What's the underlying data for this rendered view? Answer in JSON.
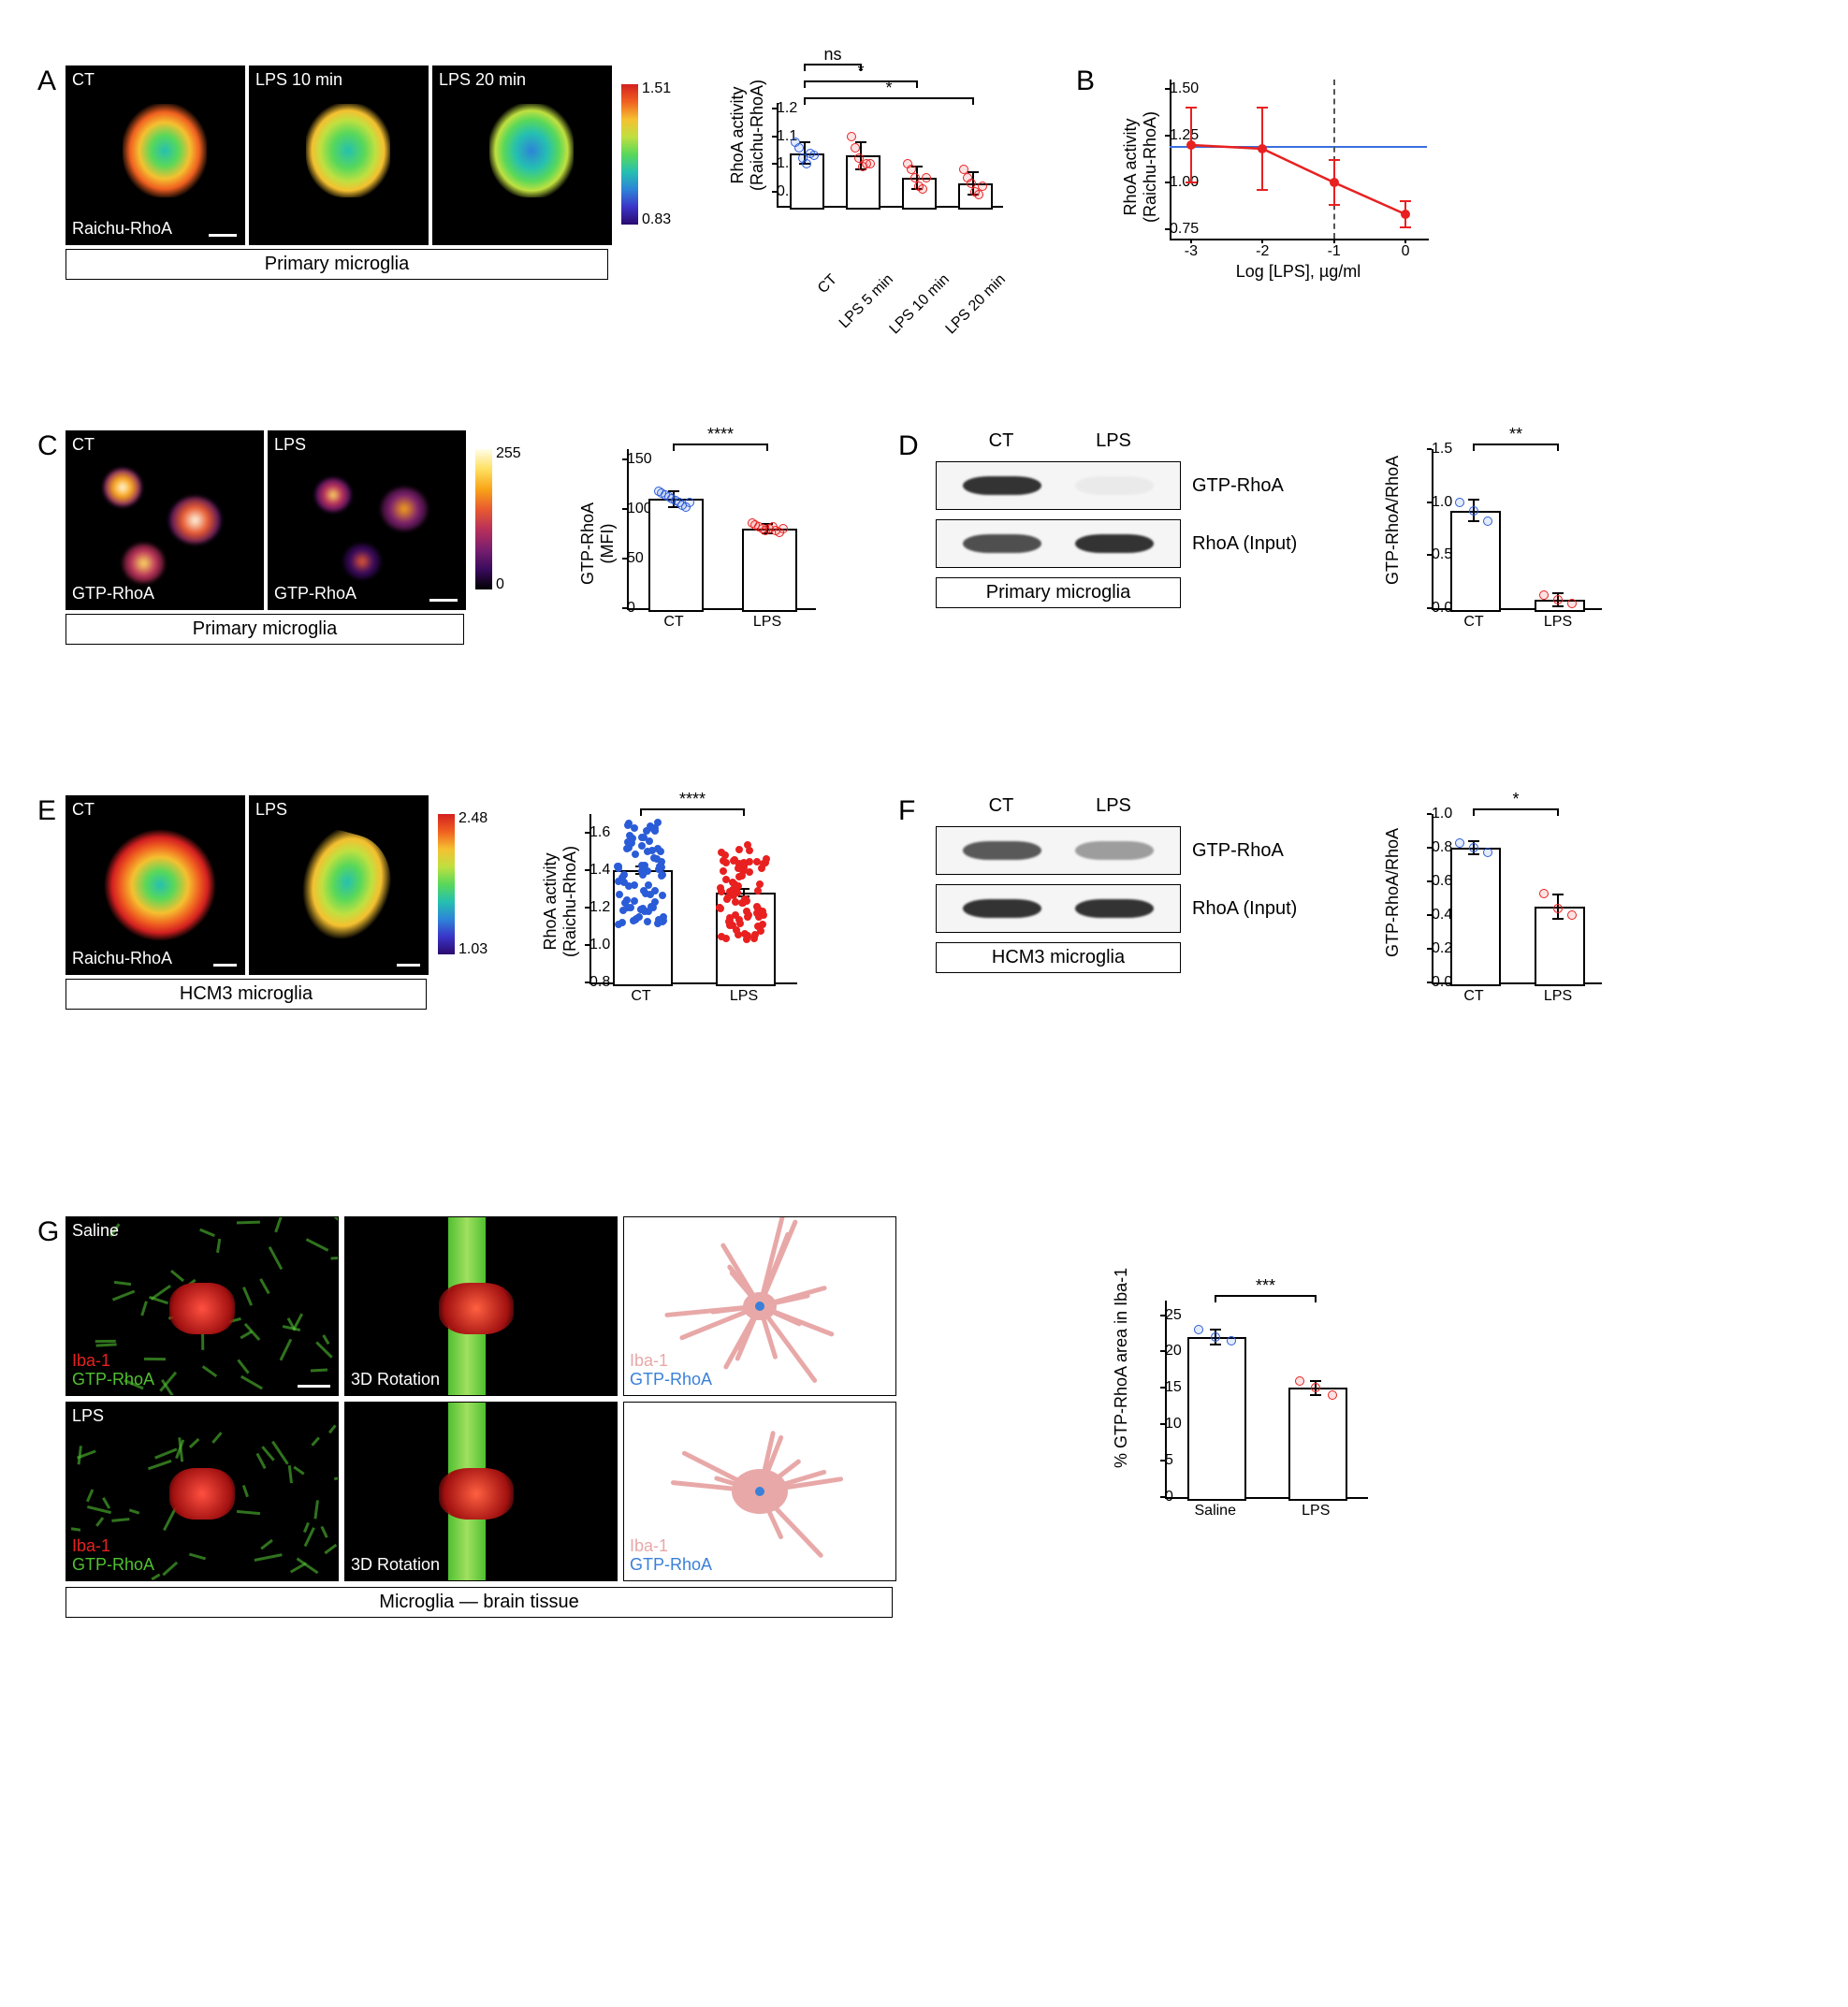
{
  "panelA": {
    "label": "A",
    "images": [
      {
        "title": "CT",
        "overlay": "Raichu-RhoA"
      },
      {
        "title": "LPS 10 min",
        "overlay": ""
      },
      {
        "title": "LPS 20 min",
        "overlay": ""
      }
    ],
    "caption": "Primary microglia",
    "colorbar": {
      "max": "1.51",
      "min": "0.83"
    },
    "chart": {
      "ytitle": "RhoA activity\n(Raichu-RhoA)",
      "yticks": [
        "0.9",
        "1.0",
        "1.1",
        "1.2"
      ],
      "ylim": [
        0.85,
        1.22
      ],
      "categories": [
        "CT",
        "LPS 5 min",
        "LPS 10 min",
        "LPS 20 min"
      ],
      "bars": [
        1.04,
        1.03,
        0.95,
        0.93
      ],
      "err": [
        0.04,
        0.05,
        0.04,
        0.04
      ],
      "points": [
        [
          1.08,
          1.06,
          1.02,
          1.0,
          1.04,
          1.03
        ],
        [
          1.1,
          1.06,
          1.02,
          0.99,
          1.0,
          1.0
        ],
        [
          1.0,
          0.98,
          0.95,
          0.92,
          0.91,
          0.95
        ],
        [
          0.98,
          0.95,
          0.93,
          0.9,
          0.89,
          0.92
        ]
      ],
      "colors": {
        "ct": "#2b5cd8",
        "lps": "#e82020"
      },
      "sig": [
        {
          "from": 0,
          "to": 1,
          "label": "ns"
        },
        {
          "from": 0,
          "to": 2,
          "label": "*"
        },
        {
          "from": 0,
          "to": 3,
          "label": "*"
        }
      ]
    }
  },
  "panelB": {
    "label": "B",
    "ytitle": "RhoA activity\n(Raichu-RhoA)",
    "xtitle": "Log [LPS], µg/ml",
    "yticks": [
      "0.75",
      "1.00",
      "1.25",
      "1.50"
    ],
    "ylim": [
      0.7,
      1.55
    ],
    "xticks": [
      "-3",
      "-2",
      "-1",
      "0"
    ],
    "xlim": [
      -3.3,
      0.3
    ],
    "baseline_y": 1.19,
    "baseline_color": "#3a6fe0",
    "vline_x": -1,
    "series_color": "#e82020",
    "points": [
      {
        "x": -3,
        "y": 1.2,
        "err": 0.2
      },
      {
        "x": -2,
        "y": 1.18,
        "err": 0.22
      },
      {
        "x": -1,
        "y": 1.0,
        "err": 0.12
      },
      {
        "x": 0,
        "y": 0.83,
        "err": 0.07
      }
    ]
  },
  "panelC": {
    "label": "C",
    "images": [
      {
        "title": "CT",
        "overlay": "GTP-RhoA"
      },
      {
        "title": "LPS",
        "overlay": "GTP-RhoA"
      }
    ],
    "caption": "Primary microglia",
    "colorbar": {
      "max": "255",
      "min": "0"
    },
    "chart": {
      "ytitle": "GTP-RhoA\n(MFI)",
      "yticks": [
        "0",
        "50",
        "100",
        "150"
      ],
      "ylim": [
        0,
        160
      ],
      "categories": [
        "CT",
        "LPS"
      ],
      "bars": [
        110,
        80
      ],
      "err": [
        8,
        5
      ],
      "points": [
        [
          118,
          116,
          114,
          112,
          110,
          108,
          106,
          104,
          102,
          106
        ],
        [
          86,
          84,
          82,
          80,
          78,
          80,
          82,
          78,
          76,
          80
        ]
      ],
      "colors": {
        "ct": "#2b5cd8",
        "lps": "#e82020"
      },
      "sig": [
        {
          "from": 0,
          "to": 1,
          "label": "****"
        }
      ]
    }
  },
  "panelD": {
    "label": "D",
    "lanes": [
      "CT",
      "LPS"
    ],
    "rows": [
      {
        "label": "GTP-RhoA",
        "intensity": [
          1.0,
          0.05
        ]
      },
      {
        "label": "RhoA (Input)",
        "intensity": [
          0.85,
          1.0
        ]
      }
    ],
    "caption": "Primary microglia",
    "chart": {
      "ytitle": "GTP-RhoA/RhoA",
      "yticks": [
        "0.0",
        "0.5",
        "1.0",
        "1.5"
      ],
      "ylim": [
        0,
        1.5
      ],
      "categories": [
        "CT",
        "LPS"
      ],
      "bars": [
        0.92,
        0.08
      ],
      "err": [
        0.1,
        0.06
      ],
      "points": [
        [
          1.0,
          0.92,
          0.82
        ],
        [
          0.12,
          0.08,
          0.04
        ]
      ],
      "colors": {
        "ct": "#2b5cd8",
        "lps": "#e82020"
      },
      "sig": [
        {
          "from": 0,
          "to": 1,
          "label": "**"
        }
      ]
    }
  },
  "panelE": {
    "label": "E",
    "images": [
      {
        "title": "CT",
        "overlay": "Raichu-RhoA"
      },
      {
        "title": "LPS",
        "overlay": ""
      }
    ],
    "caption": "HCM3 microglia",
    "colorbar": {
      "max": "2.48",
      "min": "1.03"
    },
    "chart": {
      "ytitle": "RhoA activity\n(Raichu-RhoA)",
      "yticks": [
        "0.8",
        "1.0",
        "1.2",
        "1.4",
        "1.6"
      ],
      "ylim": [
        0.8,
        1.7
      ],
      "categories": [
        "CT",
        "LPS"
      ],
      "bars": [
        1.4,
        1.28
      ],
      "err": [
        0.02,
        0.02
      ],
      "points_dense": {
        "ct_n": 80,
        "lps_n": 80,
        "ct_range": [
          1.1,
          1.65
        ],
        "lps_range": [
          1.02,
          1.55
        ]
      },
      "colors": {
        "ct": "#2b5cd8",
        "lps": "#e82020"
      },
      "sig": [
        {
          "from": 0,
          "to": 1,
          "label": "****"
        }
      ]
    }
  },
  "panelF": {
    "label": "F",
    "lanes": [
      "CT",
      "LPS"
    ],
    "rows": [
      {
        "label": "GTP-RhoA",
        "intensity": [
          0.8,
          0.45
        ]
      },
      {
        "label": "RhoA (Input)",
        "intensity": [
          1.0,
          1.0
        ]
      }
    ],
    "caption": "HCM3 microglia",
    "chart": {
      "ytitle": "GTP-RhoA/RhoA",
      "yticks": [
        "0.0",
        "0.2",
        "0.4",
        "0.6",
        "0.8",
        "1.0"
      ],
      "ylim": [
        0,
        1.0
      ],
      "categories": [
        "CT",
        "LPS"
      ],
      "bars": [
        0.8,
        0.45
      ],
      "err": [
        0.04,
        0.07
      ],
      "points": [
        [
          0.83,
          0.8,
          0.77
        ],
        [
          0.53,
          0.44,
          0.4
        ]
      ],
      "colors": {
        "ct": "#2b5cd8",
        "lps": "#e82020"
      },
      "sig": [
        {
          "from": 0,
          "to": 1,
          "label": "*"
        }
      ]
    }
  },
  "panelG": {
    "label": "G",
    "rows": [
      {
        "cond": "Saline",
        "overlays": [
          [
            "Iba-1",
            "GTP-RhoA"
          ],
          [
            "3D Rotation"
          ],
          [
            "Iba-1",
            "GTP-RhoA"
          ]
        ],
        "overlay_colors": [
          [
            "#e82020",
            "#50c030"
          ],
          [
            "#ffffff"
          ],
          [
            "#e8a8a8",
            "#3a80d8"
          ]
        ]
      },
      {
        "cond": "LPS",
        "overlays": [
          [
            "Iba-1",
            "GTP-RhoA"
          ],
          [
            "3D Rotation"
          ],
          [
            "Iba-1",
            "GTP-RhoA"
          ]
        ],
        "overlay_colors": [
          [
            "#e82020",
            "#50c030"
          ],
          [
            "#ffffff"
          ],
          [
            "#e8a8a8",
            "#3a80d8"
          ]
        ]
      }
    ],
    "caption": "Microglia — brain tissue",
    "chart": {
      "ytitle": "% GTP-RhoA area in Iba-1",
      "yticks": [
        "0",
        "5",
        "10",
        "15",
        "20",
        "25"
      ],
      "ylim": [
        0,
        27
      ],
      "categories": [
        "Saline",
        "LPS"
      ],
      "bars": [
        22,
        15
      ],
      "err": [
        1.0,
        1.0
      ],
      "points": [
        [
          23,
          22,
          21.5
        ],
        [
          16,
          15,
          14
        ]
      ],
      "colors": {
        "ct": "#2b5cd8",
        "lps": "#e82020"
      },
      "sig": [
        {
          "from": 0,
          "to": 1,
          "label": "***"
        }
      ]
    }
  }
}
